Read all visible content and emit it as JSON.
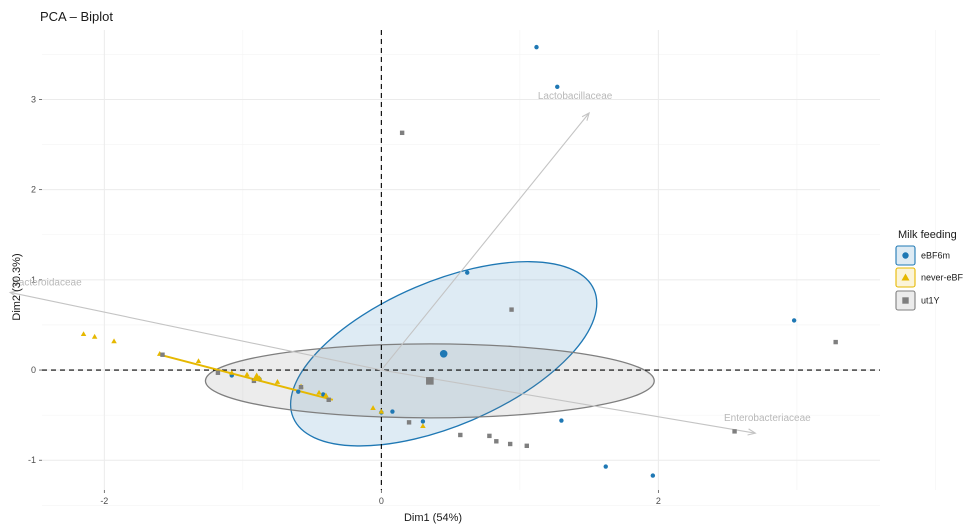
{
  "chart_data": {
    "type": "scatter",
    "title": "PCA – Biplot",
    "xlabel": "Dim1 (54%)",
    "ylabel": "Dim2 (30.3%)",
    "xlim": [
      -2.45,
      3.6
    ],
    "ylim": [
      -1.33,
      3.77
    ],
    "xticks": [
      -2,
      0,
      2
    ],
    "xtick_labels": [
      "-2",
      "0",
      "2"
    ],
    "yticks": [
      -1,
      0,
      1,
      2,
      3
    ],
    "ytick_labels": [
      "-1",
      "0",
      "1",
      "2",
      "3"
    ],
    "grid": true,
    "legend": {
      "title": "Milk feeding",
      "position": "right",
      "entries": [
        "eBF6m",
        "never-eBF",
        "ut1Y"
      ]
    },
    "colors": {
      "eBF6m": "#1f78b4",
      "never-eBF": "#e6b800",
      "ut1Y": "#7f7f7f"
    },
    "series": [
      {
        "name": "eBF6m",
        "shape": "circle",
        "x": [
          1.12,
          1.27,
          0.62,
          2.98,
          0.45,
          1.3,
          1.62,
          1.96,
          0.3,
          0.08,
          0.0,
          -0.42,
          -0.6,
          -0.88,
          -1.08
        ],
        "y": [
          3.58,
          3.14,
          1.08,
          0.55,
          0.18,
          -0.56,
          -1.07,
          -1.17,
          -0.57,
          -0.46,
          -0.47,
          -0.27,
          -0.24,
          -0.1,
          -0.06
        ],
        "centroid": [
          0.45,
          0.18
        ],
        "ellipse": {
          "cx": 0.45,
          "cy": 0.18,
          "rx": 1.18,
          "ry": 0.8,
          "angle_deg": 23
        }
      },
      {
        "name": "never-eBF",
        "shape": "triangle",
        "x": [
          -2.15,
          -2.07,
          -1.93,
          -1.6,
          -1.32,
          -1.08,
          -0.97,
          -0.88,
          -0.75,
          -0.58,
          -0.45,
          -0.4,
          -0.06,
          0.0,
          0.3
        ],
        "y": [
          0.4,
          0.37,
          0.32,
          0.18,
          0.1,
          -0.03,
          -0.05,
          -0.09,
          -0.13,
          -0.18,
          -0.25,
          -0.28,
          -0.42,
          -0.46,
          -0.62
        ],
        "centroid": [
          -0.9,
          -0.08
        ]
      },
      {
        "name": "ut1Y",
        "shape": "square",
        "x": [
          0.15,
          0.94,
          3.28,
          2.55,
          -1.58,
          -1.18,
          -0.92,
          -0.38,
          0.2,
          0.57,
          0.78,
          0.83,
          0.93,
          1.05,
          -0.58
        ],
        "y": [
          2.63,
          0.67,
          0.31,
          -0.68,
          0.17,
          -0.03,
          -0.12,
          -0.33,
          -0.58,
          -0.72,
          -0.73,
          -0.79,
          -0.82,
          -0.84,
          -0.19
        ],
        "centroid": [
          0.35,
          -0.12
        ],
        "ellipse": {
          "cx": 0.35,
          "cy": -0.12,
          "rx": 1.62,
          "ry": 0.41,
          "angle_deg": 0
        }
      }
    ],
    "variables": [
      {
        "name": "Lactobacillaceae",
        "x": 1.5,
        "y": 2.85
      },
      {
        "name": "Bacteroidaceae",
        "x": -2.68,
        "y": 0.86
      },
      {
        "name": "Enterobacteriaceae",
        "x": 2.7,
        "y": -0.7
      }
    ],
    "reference_lines": {
      "x": 0,
      "y": 0,
      "style": "dashed"
    }
  }
}
